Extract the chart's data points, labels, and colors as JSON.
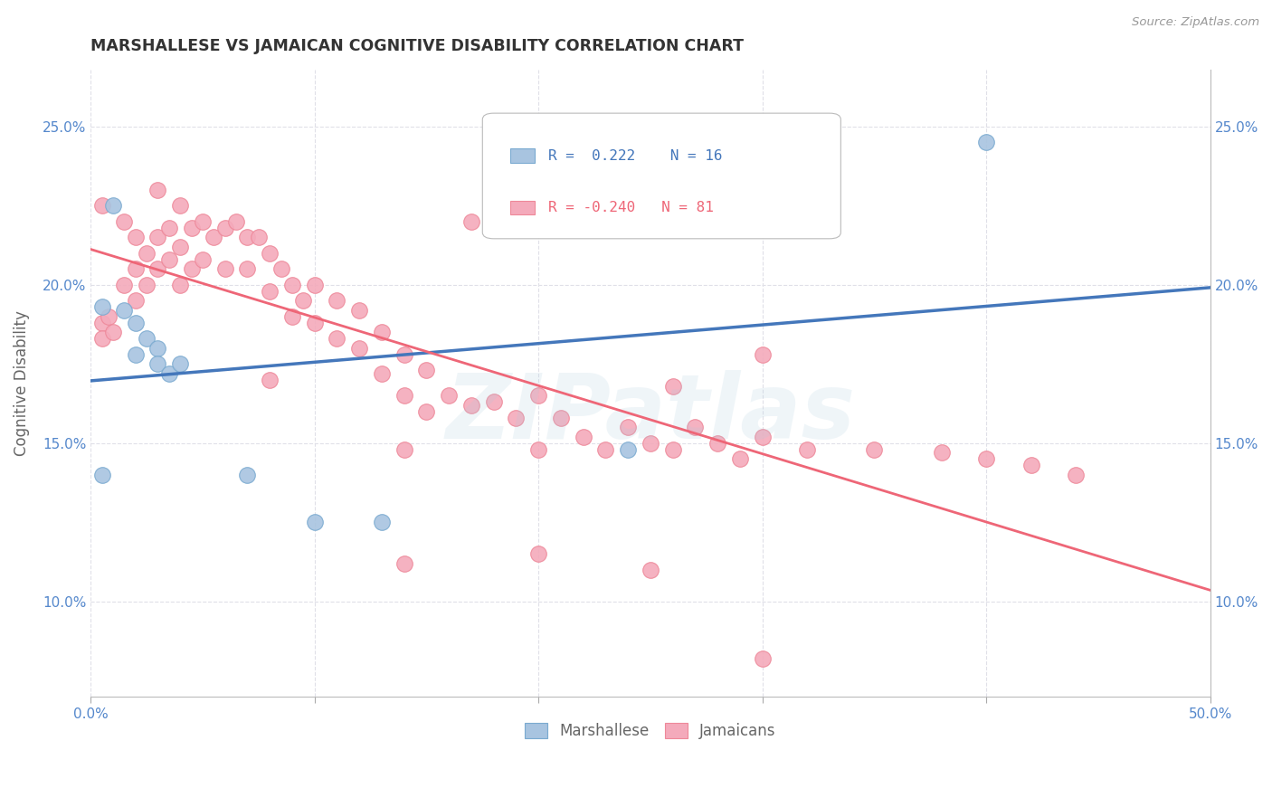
{
  "title": "MARSHALLESE VS JAMAICAN COGNITIVE DISABILITY CORRELATION CHART",
  "source": "Source: ZipAtlas.com",
  "ylabel_label": "Cognitive Disability",
  "x_min": 0.0,
  "x_max": 0.5,
  "y_min": 0.07,
  "y_max": 0.268,
  "x_ticks": [
    0.0,
    0.1,
    0.2,
    0.3,
    0.4,
    0.5
  ],
  "x_tick_labels": [
    "0.0%",
    "",
    "",
    "",
    "",
    "50.0%"
  ],
  "y_ticks": [
    0.1,
    0.15,
    0.2,
    0.25
  ],
  "y_tick_labels": [
    "10.0%",
    "15.0%",
    "20.0%",
    "25.0%"
  ],
  "marshallese_color": "#A8C4E0",
  "jamaican_color": "#F4AABB",
  "marshallese_edge_color": "#7AAAD0",
  "jamaican_edge_color": "#EE8899",
  "marshallese_line_color": "#4477BB",
  "jamaican_line_color": "#EE6677",
  "legend_R_marshallese": "R =  0.222",
  "legend_N_marshallese": "N = 16",
  "legend_R_jamaican": "R = -0.240",
  "legend_N_jamaican": "N = 81",
  "marshallese_scatter_x": [
    0.005,
    0.01,
    0.015,
    0.02,
    0.02,
    0.025,
    0.03,
    0.03,
    0.035,
    0.04,
    0.07,
    0.1,
    0.13,
    0.4,
    0.24,
    0.005
  ],
  "marshallese_scatter_y": [
    0.193,
    0.225,
    0.192,
    0.188,
    0.178,
    0.183,
    0.18,
    0.175,
    0.172,
    0.175,
    0.14,
    0.125,
    0.125,
    0.245,
    0.148,
    0.14
  ],
  "jamaican_scatter_x": [
    0.005,
    0.005,
    0.008,
    0.01,
    0.015,
    0.015,
    0.02,
    0.02,
    0.02,
    0.025,
    0.025,
    0.03,
    0.03,
    0.03,
    0.035,
    0.035,
    0.04,
    0.04,
    0.04,
    0.045,
    0.045,
    0.05,
    0.05,
    0.055,
    0.06,
    0.06,
    0.065,
    0.07,
    0.07,
    0.075,
    0.08,
    0.08,
    0.085,
    0.09,
    0.09,
    0.095,
    0.1,
    0.1,
    0.11,
    0.11,
    0.12,
    0.12,
    0.13,
    0.13,
    0.14,
    0.14,
    0.15,
    0.15,
    0.16,
    0.17,
    0.18,
    0.19,
    0.2,
    0.21,
    0.22,
    0.23,
    0.24,
    0.25,
    0.26,
    0.27,
    0.28,
    0.29,
    0.3,
    0.32,
    0.35,
    0.38,
    0.4,
    0.42,
    0.44,
    0.005,
    0.08,
    0.17,
    0.22,
    0.3,
    0.26,
    0.2,
    0.14,
    0.2,
    0.25,
    0.3,
    0.14
  ],
  "jamaican_scatter_y": [
    0.188,
    0.183,
    0.19,
    0.185,
    0.22,
    0.2,
    0.215,
    0.205,
    0.195,
    0.21,
    0.2,
    0.23,
    0.215,
    0.205,
    0.218,
    0.208,
    0.225,
    0.212,
    0.2,
    0.218,
    0.205,
    0.22,
    0.208,
    0.215,
    0.218,
    0.205,
    0.22,
    0.215,
    0.205,
    0.215,
    0.21,
    0.198,
    0.205,
    0.2,
    0.19,
    0.195,
    0.2,
    0.188,
    0.195,
    0.183,
    0.192,
    0.18,
    0.185,
    0.172,
    0.178,
    0.165,
    0.173,
    0.16,
    0.165,
    0.162,
    0.163,
    0.158,
    0.165,
    0.158,
    0.152,
    0.148,
    0.155,
    0.15,
    0.148,
    0.155,
    0.15,
    0.145,
    0.152,
    0.148,
    0.148,
    0.147,
    0.145,
    0.143,
    0.14,
    0.225,
    0.17,
    0.22,
    0.22,
    0.178,
    0.168,
    0.148,
    0.148,
    0.115,
    0.11,
    0.082,
    0.112
  ],
  "background_color": "#FFFFFF",
  "grid_color": "#E0E0E8",
  "title_color": "#333333",
  "axis_label_color": "#666666",
  "tick_label_color": "#5588CC",
  "source_color": "#999999",
  "watermark_text": "ZIPatlas",
  "watermark_color": "#AACCDD",
  "watermark_alpha": 0.18
}
